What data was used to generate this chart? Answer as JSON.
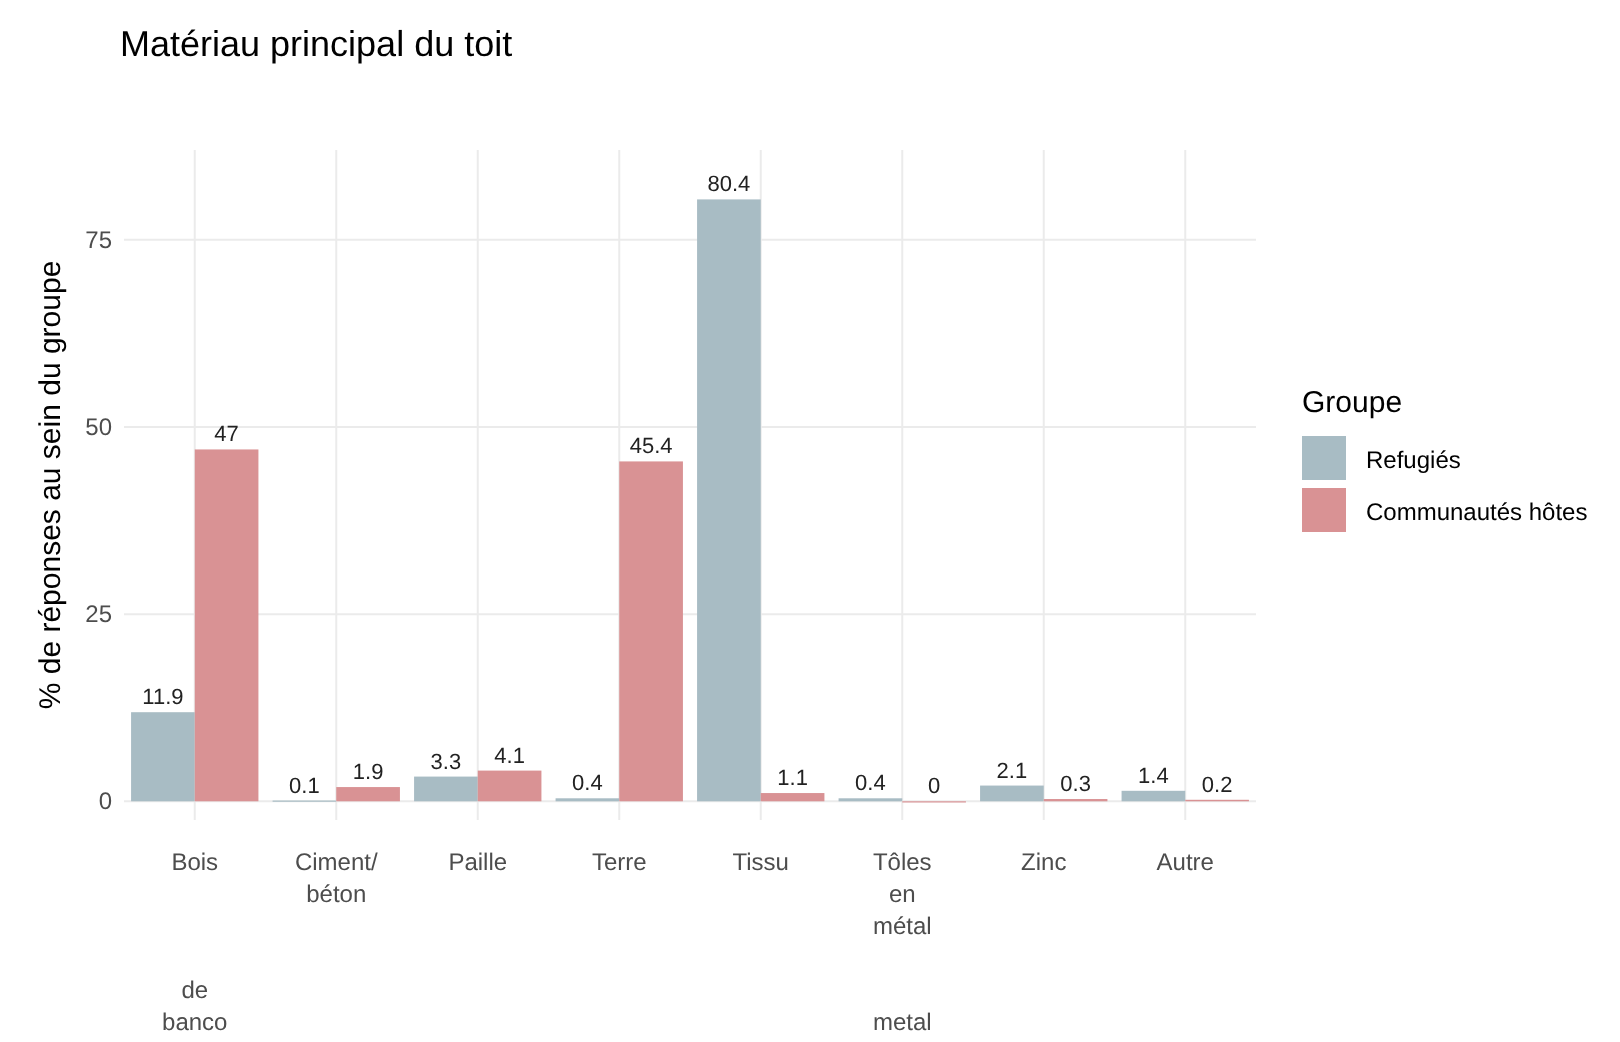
{
  "chart_data": {
    "type": "bar",
    "title": "Matériau principal du toit",
    "ylabel": "% de réponses au sein du groupe",
    "legend_title": "Groupe",
    "legend": "right",
    "categories": [
      "Bois\n\n\n\nde\nbanco",
      "Ciment/\nbéton",
      "Paille",
      "Terre",
      "Tissu",
      "Tôles\nen\nmétal\n\n\nmetal",
      "Zinc",
      "Autre"
    ],
    "series": [
      {
        "name": "Refugiés",
        "color": "#a8bcc4",
        "values": [
          11.9,
          0.1,
          3.3,
          0.4,
          80.4,
          0.4,
          2.1,
          1.4
        ]
      },
      {
        "name": "Communautés hôtes",
        "color": "#d99294",
        "values": [
          47,
          1.9,
          4.1,
          45.4,
          1.1,
          0,
          0.3,
          0.2
        ]
      }
    ],
    "ylim": [
      -2.5,
      87
    ],
    "yticks": [
      0,
      25,
      50,
      75
    ],
    "grid": true,
    "data_labels": true
  }
}
